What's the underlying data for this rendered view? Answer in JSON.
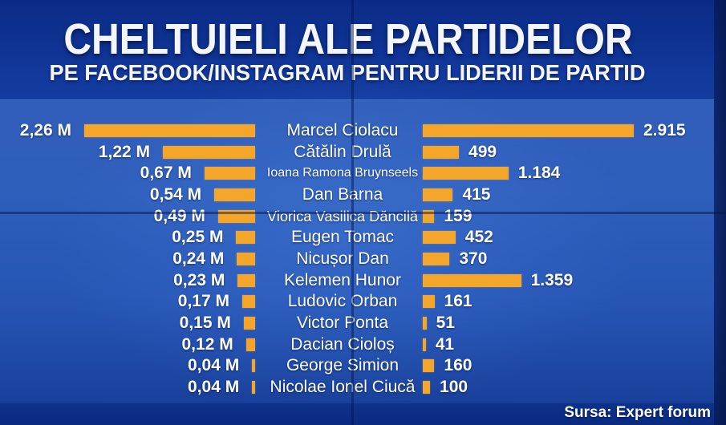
{
  "colors": {
    "bar": "#f4a62a",
    "text": "#ffffff"
  },
  "chart_data": {
    "type": "bar",
    "orientation": "horizontal",
    "title": "CHELTUIELI ALE PARTIDELOR",
    "subtitle": "PE FACEBOOK/INSTAGRAM PENTRU LIDERII DE PARTID",
    "categories": [
      "Marcel Ciolacu",
      "Cătălin Drulă",
      "Ioana Ramona Bruynseels",
      "Dan Barna",
      "Viorica Vasilica Dăncilă",
      "Eugen Tomac",
      "Nicușor Dan",
      "Kelemen Hunor",
      "Ludovic Orban",
      "Victor Ponta",
      "Dacian Cioloș",
      "George Simion",
      "Nicolae Ionel Ciucă"
    ],
    "series": [
      {
        "values": [
          2.26,
          1.22,
          0.67,
          0.54,
          0.49,
          0.25,
          0.24,
          0.23,
          0.17,
          0.15,
          0.12,
          0.04,
          0.04
        ],
        "value_labels": [
          "2,26 M",
          "1,22 M",
          "0,67 M",
          "0,54 M",
          "0,49 M",
          "0,25 M",
          "0,24 M",
          "0,23 M",
          "0,17 M",
          "0,15 M",
          "0,12 M",
          "0,04 M",
          "0,04 M"
        ]
      },
      {
        "values": [
          2915,
          499,
          1184,
          415,
          159,
          452,
          370,
          1359,
          161,
          51,
          41,
          160,
          100
        ],
        "value_labels": [
          "2.915",
          "499",
          "1.184",
          "415",
          "159",
          "452",
          "370",
          "1.359",
          "161",
          "51",
          "41",
          "160",
          "100"
        ]
      }
    ],
    "legend": "none",
    "grid": false,
    "source": "Sursa: Expert forum"
  }
}
